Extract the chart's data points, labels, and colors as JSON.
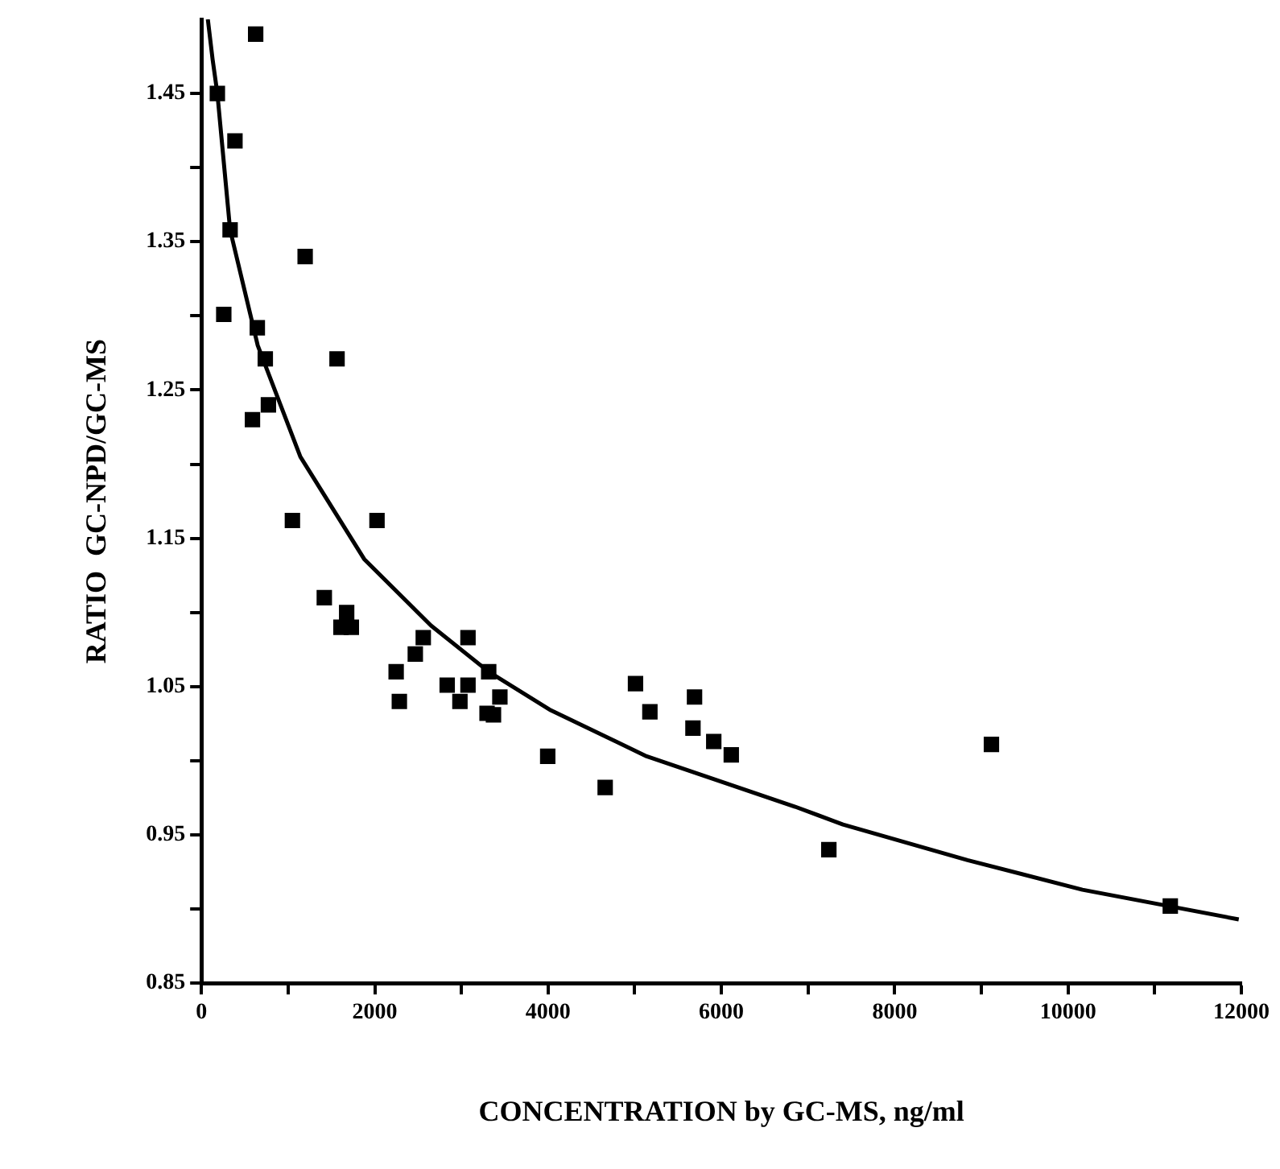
{
  "chart_data": {
    "type": "scatter",
    "xlabel": "CONCENTRATION by GC-MS, ng/ml",
    "ylabel": "RATIO  GC-NPD/GC-MS",
    "xlim": [
      0,
      12000
    ],
    "ylim": [
      0.85,
      1.5
    ],
    "xticks": [
      0,
      {
        "value": 1000,
        "label": null
      },
      2000,
      {
        "value": 3000,
        "label": null
      },
      4000,
      {
        "value": 5000,
        "label": null
      },
      6000,
      {
        "value": 7000,
        "label": null
      },
      8000,
      {
        "value": 9000,
        "label": null
      },
      10000,
      {
        "value": 11000,
        "label": null
      },
      12000
    ],
    "yticks": [
      0.85,
      {
        "value": 0.9,
        "label": null
      },
      0.95,
      {
        "value": 1.0,
        "label": null
      },
      1.05,
      {
        "value": 1.1,
        "label": null
      },
      1.15,
      {
        "value": 1.2,
        "label": null
      },
      1.25,
      {
        "value": 1.3,
        "label": null
      },
      1.35,
      {
        "value": 1.4,
        "label": null
      },
      1.45
    ],
    "grid": false,
    "legend": false,
    "series": [
      {
        "type": "scatter",
        "marker": "square",
        "color": "#000000",
        "x": [
          626,
          184,
          387,
          331,
          1197,
          258,
          645,
          737,
          1565,
          773,
          589,
          1050,
          2026,
          1418,
          1676,
          1610,
          1730,
          2560,
          2468,
          2247,
          2284,
          3076,
          3315,
          2836,
          3076,
          2983,
          3444,
          3296,
          3370,
          5009,
          5175,
          5690,
          5672,
          5912,
          6114,
          3996,
          4659,
          7240,
          9116,
          11180
        ],
        "values": [
          1.49,
          1.45,
          1.418,
          1.358,
          1.34,
          1.301,
          1.292,
          1.271,
          1.271,
          1.24,
          1.23,
          1.162,
          1.162,
          1.11,
          1.1,
          1.09,
          1.09,
          1.083,
          1.072,
          1.06,
          1.04,
          1.083,
          1.06,
          1.051,
          1.051,
          1.04,
          1.043,
          1.032,
          1.031,
          1.052,
          1.033,
          1.043,
          1.022,
          1.013,
          1.004,
          1.003,
          0.982,
          0.94,
          1.011,
          0.902
        ]
      },
      {
        "type": "line",
        "marker": "none",
        "color": "#000000",
        "x": [
          74,
          129,
          184,
          331,
          650,
          1142,
          1878,
          2652,
          3315,
          4033,
          5138,
          6851,
          7403,
          8840,
          10166,
          11970
        ],
        "values": [
          1.5,
          1.473,
          1.45,
          1.358,
          1.28,
          1.205,
          1.136,
          1.091,
          1.06,
          1.034,
          1.003,
          0.969,
          0.957,
          0.933,
          0.913,
          0.893
        ]
      }
    ]
  }
}
